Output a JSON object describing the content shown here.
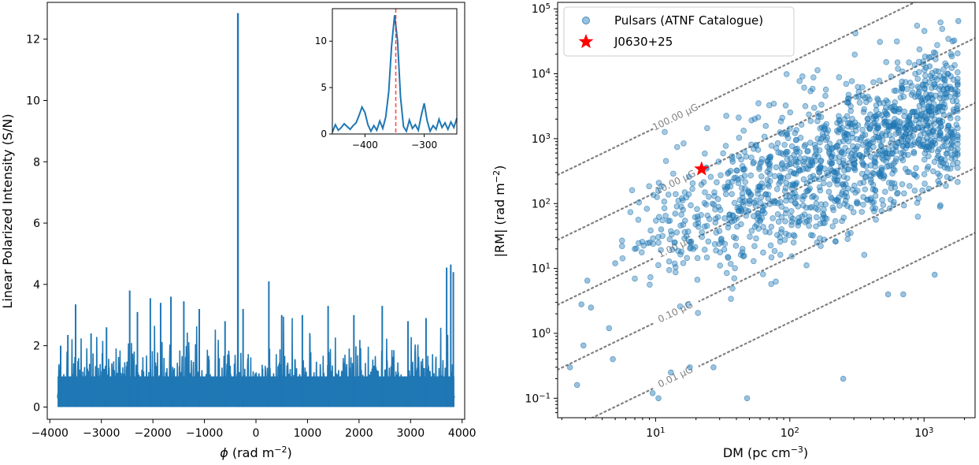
{
  "chart_data": [
    {
      "type": "line",
      "name": "faraday-spectrum",
      "xlabel_symbol": "ϕ",
      "xlabel_unit": " (rad m",
      "xlabel_sup": "−2",
      "xlabel_close": ")",
      "ylabel": "Linear Polarized Intensity (S/N)",
      "xlim": [
        -4050,
        4050
      ],
      "ylim": [
        -0.4,
        13.2
      ],
      "xticks": [
        -4000,
        -3000,
        -2000,
        -1000,
        0,
        1000,
        2000,
        3000,
        4000
      ],
      "xtick_labels": [
        "−4000",
        "−3000",
        "−2000",
        "−1000",
        "0",
        "1000",
        "2000",
        "3000",
        "4000"
      ],
      "yticks": [
        0,
        2,
        4,
        6,
        8,
        10,
        12
      ],
      "ytick_labels": [
        "0",
        "2",
        "4",
        "6",
        "8",
        "10",
        "12"
      ],
      "x_range": [
        -3850,
        3850
      ],
      "peak": {
        "x": -350,
        "y": 12.85
      },
      "noise_spikes": [
        {
          "x": -3790,
          "y": 2.0
        },
        {
          "x": -3650,
          "y": 2.35
        },
        {
          "x": -3500,
          "y": 3.35
        },
        {
          "x": -3200,
          "y": 2.4
        },
        {
          "x": -2900,
          "y": 2.6
        },
        {
          "x": -2450,
          "y": 3.8
        },
        {
          "x": -2300,
          "y": 3.1
        },
        {
          "x": -2050,
          "y": 3.55
        },
        {
          "x": -1850,
          "y": 3.4
        },
        {
          "x": -1650,
          "y": 3.6
        },
        {
          "x": -1400,
          "y": 3.45
        },
        {
          "x": -1100,
          "y": 3.2
        },
        {
          "x": -600,
          "y": 2.8
        },
        {
          "x": -250,
          "y": 3.2
        },
        {
          "x": 250,
          "y": 4.1
        },
        {
          "x": 500,
          "y": 3.0
        },
        {
          "x": 900,
          "y": 3.0
        },
        {
          "x": 1400,
          "y": 3.3
        },
        {
          "x": 1900,
          "y": 3.0
        },
        {
          "x": 2450,
          "y": 3.3
        },
        {
          "x": 2950,
          "y": 2.8
        },
        {
          "x": 3300,
          "y": 2.9
        },
        {
          "x": 3700,
          "y": 4.55
        },
        {
          "x": 3780,
          "y": 4.65
        },
        {
          "x": 3830,
          "y": 4.4
        }
      ],
      "inset": {
        "xlim": [
          -455,
          -245
        ],
        "ylim": [
          0,
          13.5
        ],
        "xticks": [
          -400,
          -300
        ],
        "xtick_labels": [
          "−400",
          "−300"
        ],
        "yticks": [
          0,
          5,
          10
        ],
        "ytick_labels": [
          "0",
          "5",
          "10"
        ],
        "peak_marker_x": -348,
        "x": [
          -455,
          -450,
          -445,
          -440,
          -435,
          -430,
          -425,
          -420,
          -415,
          -410,
          -405,
          -400,
          -395,
          -390,
          -385,
          -380,
          -375,
          -370,
          -365,
          -360,
          -355,
          -350,
          -345,
          -340,
          -335,
          -330,
          -325,
          -320,
          -315,
          -310,
          -305,
          -300,
          -295,
          -290,
          -285,
          -280,
          -275,
          -270,
          -265,
          -260,
          -255,
          -250,
          -245
        ],
        "y": [
          0.2,
          1.0,
          0.4,
          0.7,
          1.1,
          0.8,
          0.5,
          0.9,
          1.2,
          2.0,
          2.9,
          2.3,
          1.0,
          0.3,
          0.9,
          0.4,
          1.4,
          0.6,
          1.8,
          4.5,
          9.5,
          12.8,
          10.0,
          4.0,
          0.8,
          0.3,
          1.5,
          0.6,
          1.0,
          0.4,
          2.0,
          3.3,
          1.4,
          0.3,
          0.9,
          0.5,
          1.6,
          0.7,
          1.2,
          0.5,
          1.3,
          0.7,
          1.7
        ]
      }
    },
    {
      "type": "scatter",
      "name": "rm-vs-dm",
      "xlabel": "DM (pc cm",
      "xlabel_sup": "−3",
      "xlabel_close": ")",
      "ylabel": "|RM| (rad m",
      "ylabel_sup": "−2",
      "ylabel_close": ")",
      "xscale": "log",
      "yscale": "log",
      "xlim_log10": [
        0.27,
        3.38
      ],
      "ylim_log10": [
        -1.3,
        5.1
      ],
      "xticks_log10": [
        1,
        2,
        3
      ],
      "xtick_base": "10",
      "xtick_exps": [
        "1",
        "2",
        "3"
      ],
      "yticks_log10": [
        -1,
        0,
        1,
        2,
        3,
        4,
        5
      ],
      "ytick_base": "10",
      "ytick_exps": [
        "−1",
        "0",
        "1",
        "2",
        "3",
        "4",
        "5"
      ],
      "legend": {
        "placement": "upper-left",
        "entries": [
          {
            "label": "Pulsars (ATNF Catalogue)",
            "marker": "circle",
            "color": "#1f77b4"
          },
          {
            "label": "J0630+25",
            "marker": "star",
            "color": "#ff0000"
          }
        ]
      },
      "target": {
        "name": "J0630+25",
        "dm": 22,
        "rm": 340
      },
      "field_lines": [
        {
          "label": "100.00 μG",
          "log10_rm_at_dm1": 2.17
        },
        {
          "label": "10.00 μG",
          "log10_rm_at_dm1": 1.17
        },
        {
          "label": "1.00 μG",
          "log10_rm_at_dm1": 0.17
        },
        {
          "label": "0.10 μG",
          "log10_rm_at_dm1": -0.83
        },
        {
          "label": "0.01 μG",
          "log10_rm_at_dm1": -1.83
        }
      ],
      "scatter_points": [
        {
          "dm": 1800,
          "rm": 65000
        },
        {
          "dm": 1100,
          "rm": 13000
        },
        {
          "dm": 1500,
          "rm": 10000
        },
        {
          "dm": 680,
          "rm": 6500
        },
        {
          "dm": 520,
          "rm": 3000
        },
        {
          "dm": 560,
          "rm": 3000
        },
        {
          "dm": 2.3,
          "rm": 0.3
        },
        {
          "dm": 2.6,
          "rm": 0.16
        },
        {
          "dm": 2.8,
          "rm": 2.8
        },
        {
          "dm": 3.1,
          "rm": 6.5
        },
        {
          "dm": 2.9,
          "rm": 0.65
        },
        {
          "dm": 3.3,
          "rm": 2.5
        },
        {
          "dm": 4.5,
          "rm": 1.2
        },
        {
          "dm": 4.8,
          "rm": 0.4
        },
        {
          "dm": 5.0,
          "rm": 12
        },
        {
          "dm": 9.5,
          "rm": 0.12
        },
        {
          "dm": 10.5,
          "rm": 0.1
        },
        {
          "dm": 13,
          "rm": 0.25
        },
        {
          "dm": 18,
          "rm": 0.3
        },
        {
          "dm": 27,
          "rm": 0.3
        },
        {
          "dm": 48,
          "rm": 0.1
        },
        {
          "dm": 250,
          "rm": 0.2
        },
        {
          "dm": 1200,
          "rm": 8
        },
        {
          "dm": 700,
          "rm": 4
        },
        {
          "dm": 540,
          "rm": 4
        },
        {
          "dm": 7,
          "rm": 20
        },
        {
          "dm": 9,
          "rm": 25
        },
        {
          "dm": 11,
          "rm": 40
        },
        {
          "dm": 14,
          "rm": 70
        },
        {
          "dm": 16,
          "rm": 80
        },
        {
          "dm": 1300,
          "rm": 200
        },
        {
          "dm": 900,
          "rm": 1500
        }
      ],
      "cloud": {
        "dm_log10_min": 0.75,
        "dm_log10_max": 3.25,
        "rm_ratio_log10_mean": 0.4,
        "rm_ratio_log10_sd": 0.55,
        "count": 1350
      }
    }
  ]
}
